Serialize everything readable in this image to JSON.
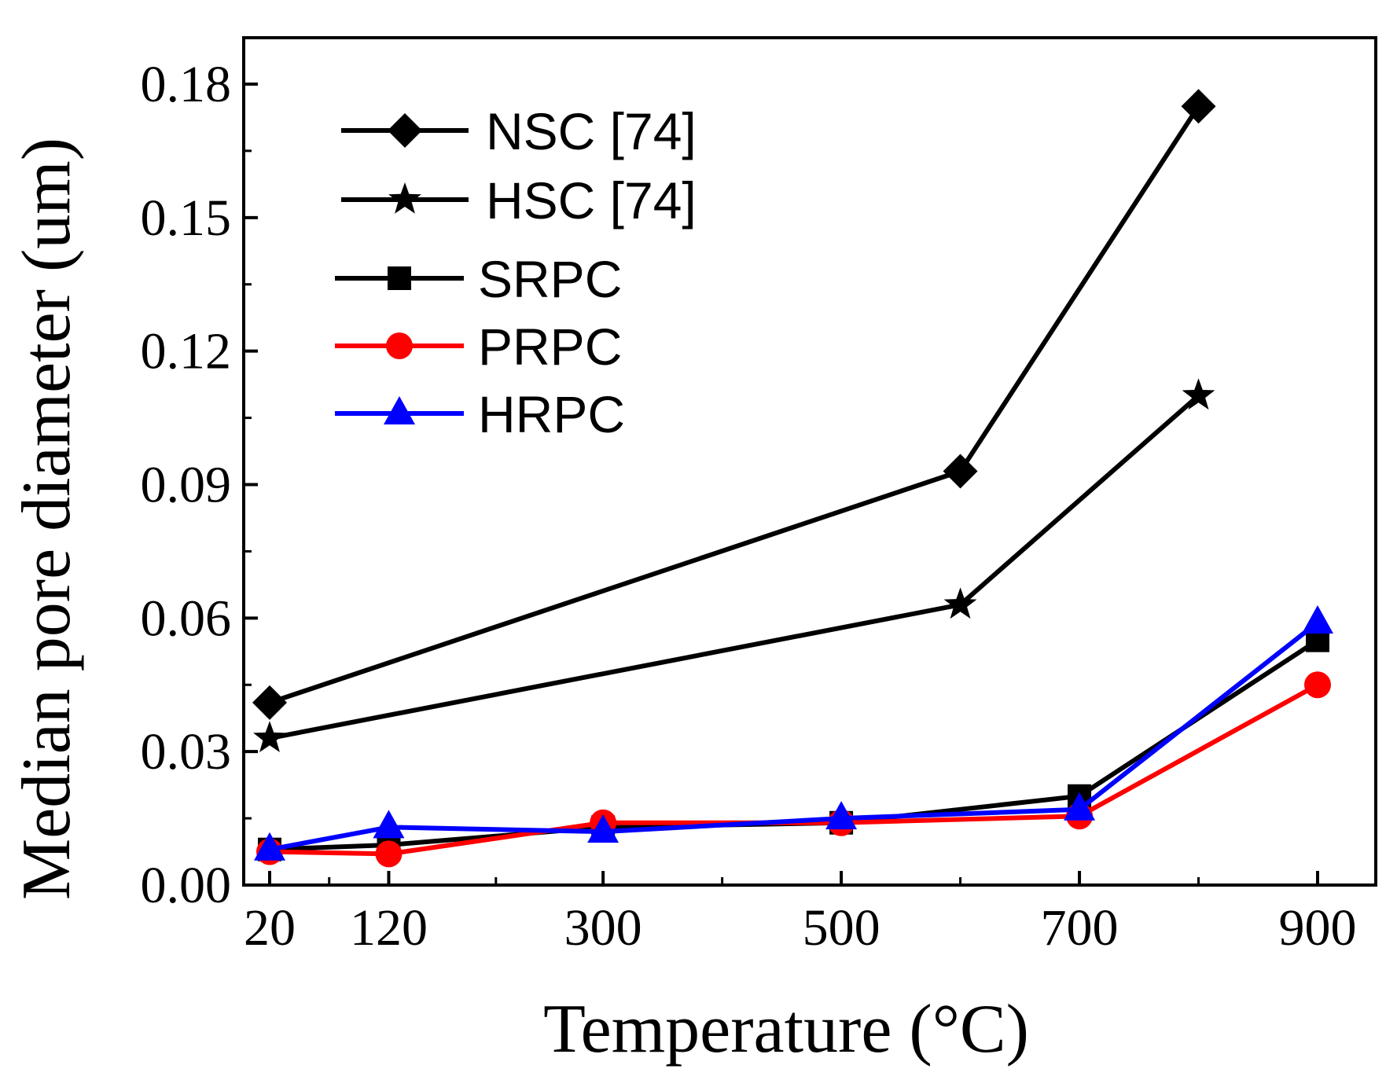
{
  "chart_data": {
    "type": "line",
    "xlabel": "Temperature (°C)",
    "ylabel": "Median pore diameter (um)",
    "xlim": [
      0,
      950
    ],
    "ylim": [
      0,
      0.19
    ],
    "x_ticks": [
      20,
      120,
      300,
      500,
      700,
      900
    ],
    "x_tick_labels": [
      "20",
      "120",
      "300",
      "500",
      "700",
      "900"
    ],
    "y_ticks": [
      0,
      0.03,
      0.06,
      0.09,
      0.12,
      0.15,
      0.18
    ],
    "y_tick_labels": [
      "0.00",
      "0.03",
      "0.06",
      "0.09",
      "0.12",
      "0.15",
      "0.18"
    ],
    "legend_position": "top-left",
    "grid": false,
    "series": [
      {
        "name": "NSC [74]",
        "color": "#000000",
        "marker": "diamond",
        "x": [
          20,
          600,
          800
        ],
        "y": [
          0.041,
          0.093,
          0.175
        ]
      },
      {
        "name": "HSC [74]",
        "color": "#000000",
        "marker": "star",
        "x": [
          20,
          600,
          800
        ],
        "y": [
          0.033,
          0.063,
          0.11
        ]
      },
      {
        "name": "SRPC",
        "color": "#000000",
        "marker": "square",
        "x": [
          20,
          120,
          300,
          500,
          700,
          900
        ],
        "y": [
          0.008,
          0.009,
          0.013,
          0.014,
          0.02,
          0.055
        ]
      },
      {
        "name": "PRPC",
        "color": "#ff0000",
        "marker": "circle",
        "x": [
          20,
          120,
          300,
          500,
          700,
          900
        ],
        "y": [
          0.0075,
          0.007,
          0.014,
          0.014,
          0.0155,
          0.045
        ]
      },
      {
        "name": "HRPC",
        "color": "#0000ff",
        "marker": "triangle",
        "x": [
          20,
          120,
          300,
          500,
          700,
          900
        ],
        "y": [
          0.008,
          0.013,
          0.012,
          0.015,
          0.017,
          0.059
        ]
      }
    ]
  }
}
